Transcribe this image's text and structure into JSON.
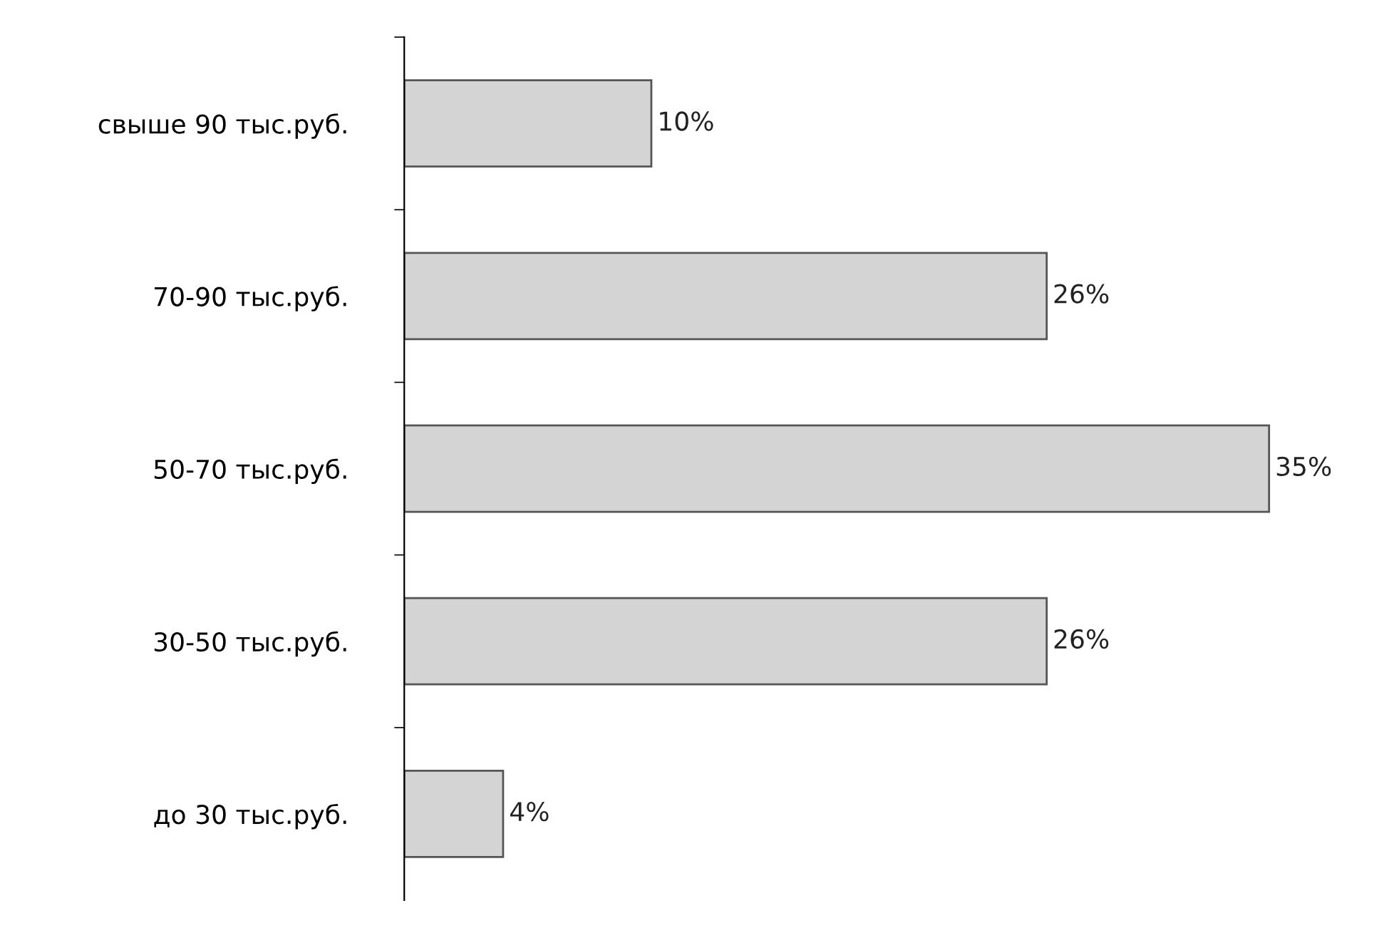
{
  "chart_data": {
    "type": "bar",
    "orientation": "horizontal",
    "categories": [
      "свыше 90 тыс.руб.",
      "70-90 тыс.руб.",
      "50-70 тыс.руб.",
      "30-50 тыс.руб.",
      "до 30 тыс.руб."
    ],
    "values": [
      10,
      26,
      35,
      26,
      4
    ],
    "value_labels": [
      "10%",
      "26%",
      "35%",
      "26%",
      "4%"
    ],
    "color": "#d4d4d4",
    "grid": false,
    "legend": false
  }
}
